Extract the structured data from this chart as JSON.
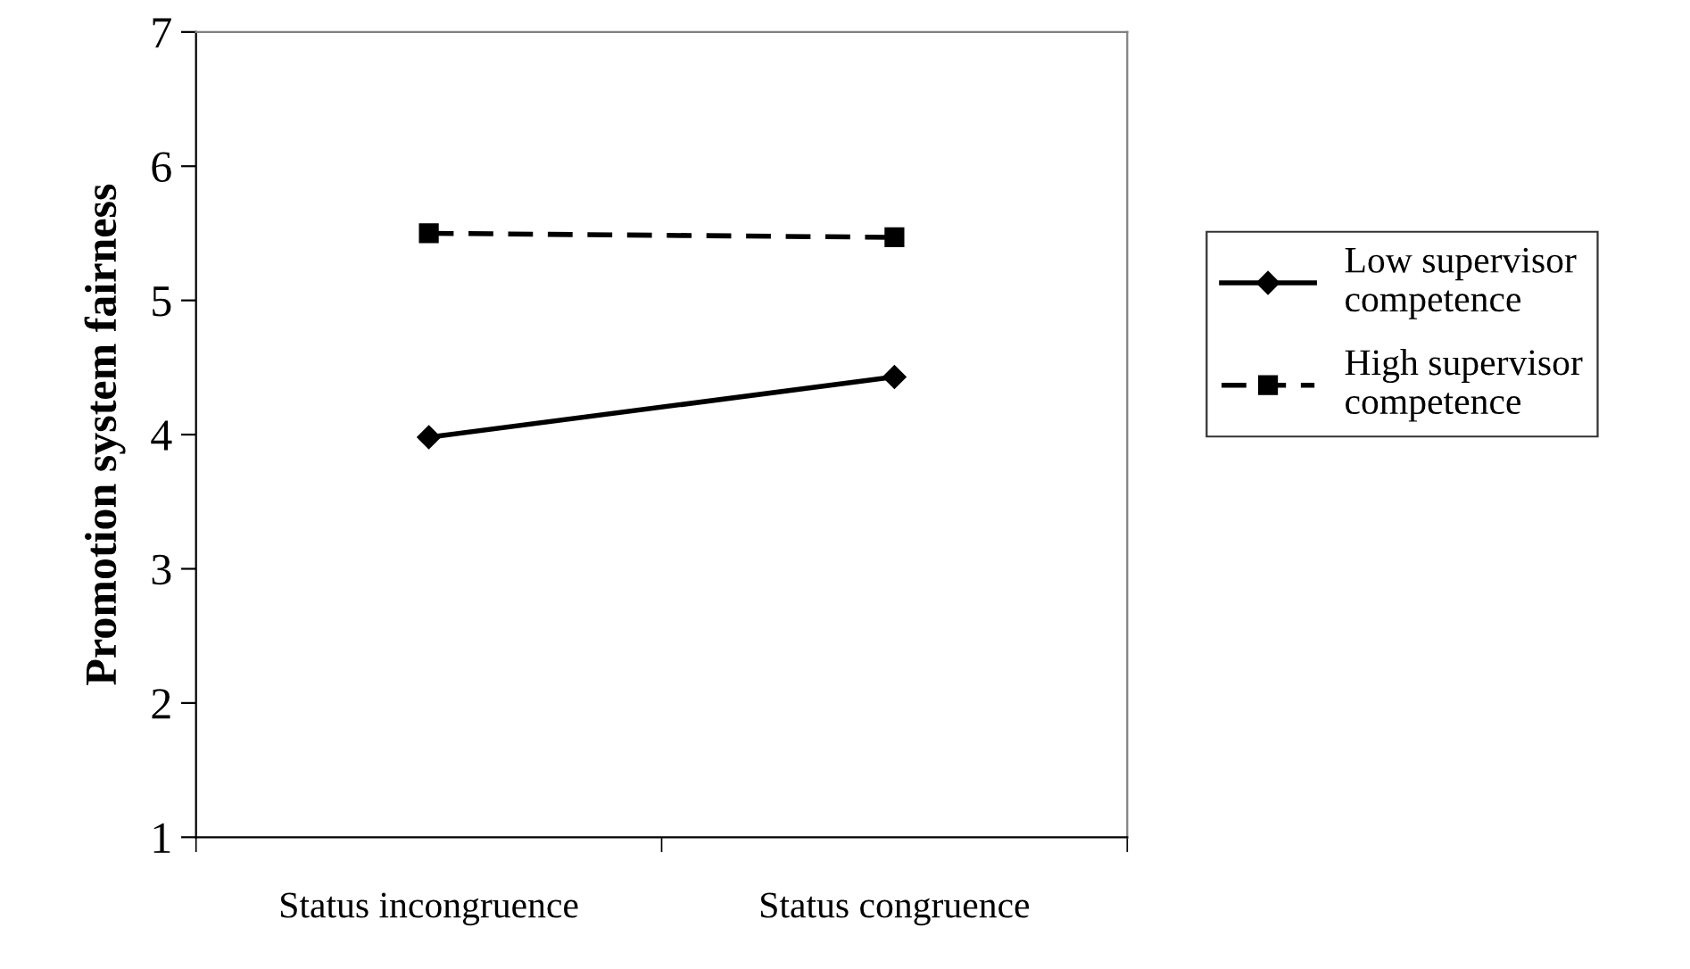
{
  "chart_data": {
    "type": "line",
    "ylabel": "Promotion system fairness",
    "categories": [
      "Status incongruence",
      "Status congruence"
    ],
    "ylim": [
      1,
      7
    ],
    "yticks": [
      1,
      2,
      3,
      4,
      5,
      6,
      7
    ],
    "grid": false,
    "legend": "right",
    "series": [
      {
        "name": "Low supervisor competence",
        "color": "#000000",
        "marker": "diamond",
        "line_style": "solid",
        "values": [
          3.98,
          4.43
        ]
      },
      {
        "name": "High supervisor competence",
        "color": "#000000",
        "marker": "square",
        "line_style": "dashed",
        "values": [
          5.5,
          5.47
        ]
      }
    ]
  }
}
